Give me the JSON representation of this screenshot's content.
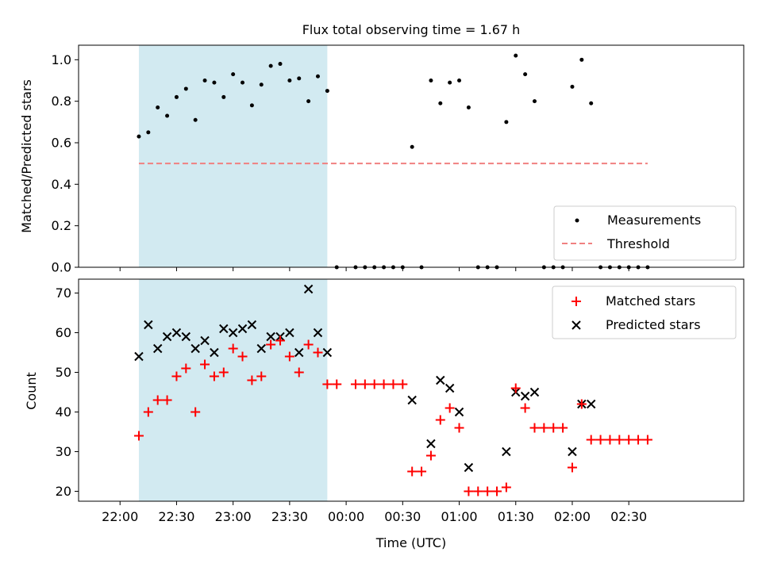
{
  "title": "Flux total observing time = 1.67 h",
  "colors": {
    "shade": "#add8e6",
    "measurement": "#000000",
    "threshold": "#f08080",
    "matched": "#ff0000",
    "predicted": "#000000"
  },
  "chart_data": [
    {
      "type": "scatter",
      "ylabel": "Matched/Predicted stars",
      "ylim": [
        0,
        1.07
      ],
      "yticks": [
        0.0,
        0.2,
        0.4,
        0.6,
        0.8,
        1.0
      ],
      "ytick_labels": [
        "0.0",
        "0.2",
        "0.4",
        "0.6",
        "0.8",
        "1.0"
      ],
      "shaded_interval": [
        "22:10",
        "23:50"
      ],
      "legend": {
        "position": "lower-right",
        "entries": [
          "Measurements",
          "Threshold"
        ]
      },
      "threshold": {
        "name": "Threshold",
        "y": 0.5,
        "x_range": [
          "22:10",
          "02:40"
        ]
      },
      "series": [
        {
          "name": "Measurements",
          "x": [
            "22:10",
            "22:15",
            "22:20",
            "22:25",
            "22:30",
            "22:35",
            "22:40",
            "22:45",
            "22:50",
            "22:55",
            "23:00",
            "23:05",
            "23:10",
            "23:15",
            "23:20",
            "23:25",
            "23:30",
            "23:35",
            "23:40",
            "23:45",
            "23:50",
            "23:55",
            "00:05",
            "00:10",
            "00:15",
            "00:20",
            "00:25",
            "00:30",
            "00:35",
            "00:40",
            "00:45",
            "00:50",
            "00:55",
            "01:00",
            "01:05",
            "01:10",
            "01:15",
            "01:20",
            "01:25",
            "01:30",
            "01:35",
            "01:40",
            "01:45",
            "01:50",
            "01:55",
            "02:00",
            "02:05",
            "02:10",
            "02:15",
            "02:20",
            "02:25",
            "02:30",
            "02:35",
            "02:40"
          ],
          "y": [
            0.63,
            0.65,
            0.77,
            0.73,
            0.82,
            0.86,
            0.71,
            0.9,
            0.89,
            0.82,
            0.93,
            0.89,
            0.78,
            0.88,
            0.97,
            0.98,
            0.9,
            0.91,
            0.8,
            0.92,
            0.85,
            0,
            0,
            0,
            0,
            0,
            0,
            0,
            0.58,
            0,
            0.9,
            0.79,
            0.89,
            0.9,
            0.77,
            0,
            0,
            0,
            0.7,
            1.02,
            0.93,
            0.8,
            0,
            0,
            0,
            0.87,
            1.0,
            0.79,
            0,
            0,
            0,
            0,
            0,
            0
          ]
        }
      ]
    },
    {
      "type": "scatter",
      "xlabel": "Time (UTC)",
      "ylabel": "Count",
      "ylim": [
        17.5,
        73.5
      ],
      "yticks": [
        20,
        30,
        40,
        50,
        60,
        70
      ],
      "ytick_labels": [
        "20",
        "30",
        "40",
        "50",
        "60",
        "70"
      ],
      "xticks": [
        "22:00",
        "22:30",
        "23:00",
        "23:30",
        "00:00",
        "00:30",
        "01:00",
        "01:30",
        "02:00",
        "02:30"
      ],
      "shaded_interval": [
        "22:10",
        "23:50"
      ],
      "legend": {
        "position": "top-right",
        "entries": [
          "Matched stars",
          "Predicted stars"
        ]
      },
      "series": [
        {
          "name": "Matched stars",
          "marker": "+",
          "x": [
            "22:10",
            "22:15",
            "22:20",
            "22:25",
            "22:30",
            "22:35",
            "22:40",
            "22:45",
            "22:50",
            "22:55",
            "23:00",
            "23:05",
            "23:10",
            "23:15",
            "23:20",
            "23:25",
            "23:30",
            "23:35",
            "23:40",
            "23:45",
            "23:50",
            "23:55",
            "00:05",
            "00:10",
            "00:15",
            "00:20",
            "00:25",
            "00:30",
            "00:35",
            "00:40",
            "00:45",
            "00:50",
            "00:55",
            "01:00",
            "01:05",
            "01:10",
            "01:15",
            "01:20",
            "01:25",
            "01:30",
            "01:35",
            "01:40",
            "01:45",
            "01:50",
            "01:55",
            "02:00",
            "02:05",
            "02:10",
            "02:15",
            "02:20",
            "02:25",
            "02:30",
            "02:35",
            "02:40"
          ],
          "y": [
            34,
            40,
            43,
            43,
            49,
            51,
            40,
            52,
            49,
            50,
            56,
            54,
            48,
            49,
            57,
            58,
            54,
            50,
            57,
            55,
            47,
            47,
            47,
            47,
            47,
            47,
            47,
            47,
            25,
            25,
            29,
            38,
            41,
            36,
            20,
            20,
            20,
            20,
            21,
            46,
            41,
            36,
            36,
            36,
            36,
            26,
            42,
            33,
            33,
            33,
            33,
            33,
            33,
            33
          ]
        },
        {
          "name": "Predicted stars",
          "marker": "x",
          "x": [
            "22:10",
            "22:15",
            "22:20",
            "22:25",
            "22:30",
            "22:35",
            "22:40",
            "22:45",
            "22:50",
            "22:55",
            "23:00",
            "23:05",
            "23:10",
            "23:15",
            "23:20",
            "23:25",
            "23:30",
            "23:35",
            "23:40",
            "23:45",
            "23:50",
            "00:35",
            "00:45",
            "00:50",
            "00:55",
            "01:00",
            "01:05",
            "01:25",
            "01:30",
            "01:35",
            "01:40",
            "02:00",
            "02:05",
            "02:10"
          ],
          "y": [
            54,
            62,
            56,
            59,
            60,
            59,
            56,
            58,
            55,
            61,
            60,
            61,
            62,
            56,
            59,
            59,
            60,
            55,
            71,
            60,
            55,
            43,
            32,
            48,
            46,
            40,
            26,
            30,
            45,
            44,
            45,
            30,
            42,
            42
          ]
        }
      ]
    }
  ]
}
